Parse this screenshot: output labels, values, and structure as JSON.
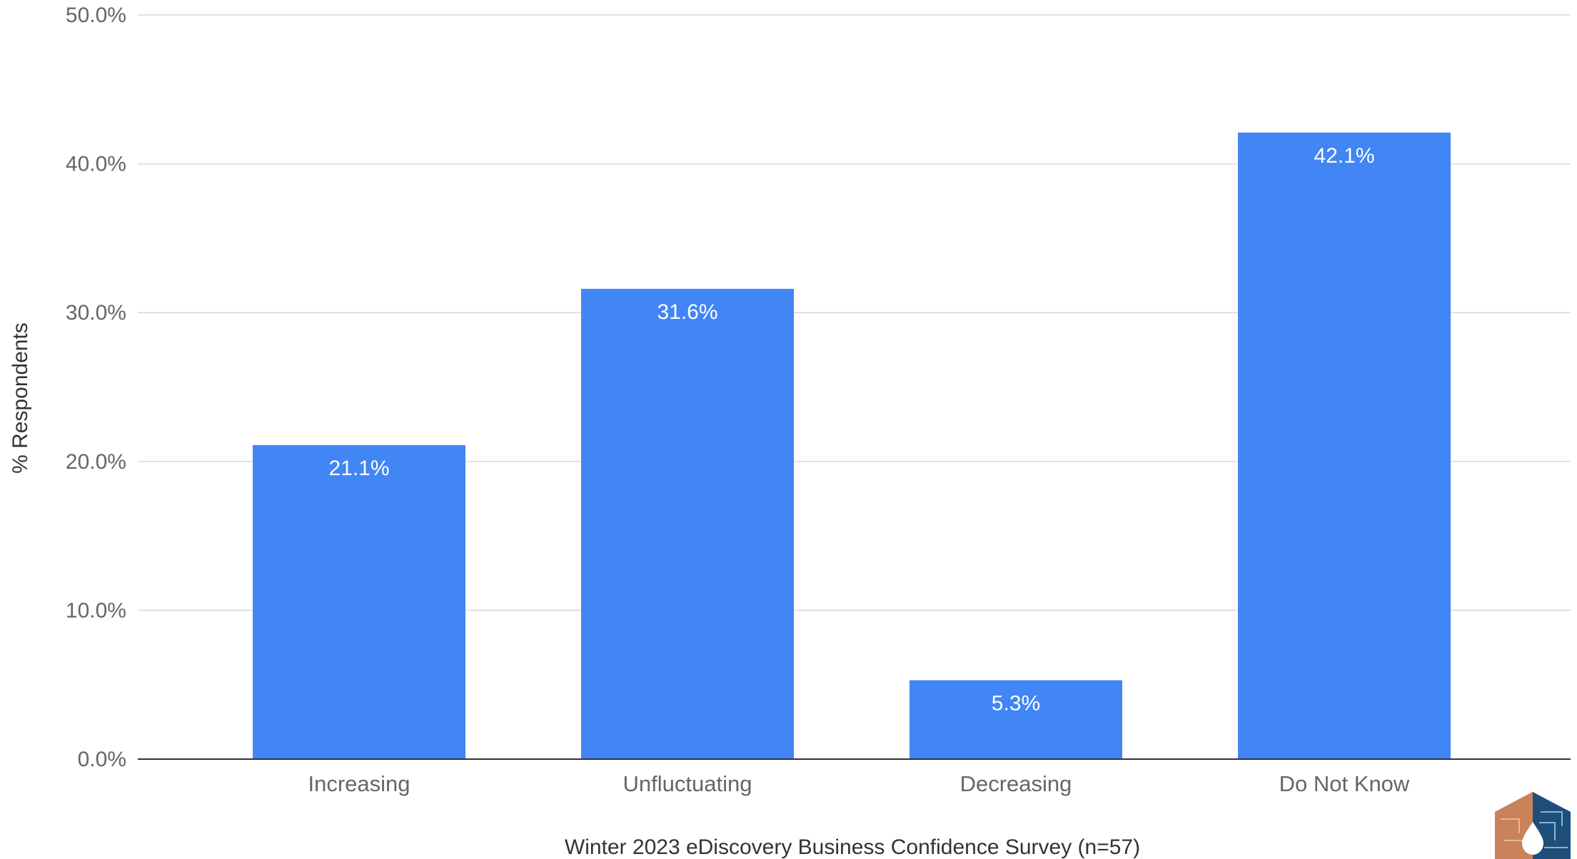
{
  "chart_data": {
    "type": "bar",
    "categories": [
      "Increasing",
      "Unfluctuating",
      "Decreasing",
      "Do Not Know"
    ],
    "values": [
      21.1,
      31.6,
      5.3,
      42.1
    ],
    "value_labels": [
      "21.1%",
      "31.6%",
      "5.3%",
      "42.1%"
    ],
    "title": "",
    "xlabel": "Winter 2023 eDiscovery Business Confidence Survey (n=57)",
    "ylabel": "% Respondents",
    "ylim": [
      0,
      50
    ],
    "yticks": [
      0,
      10,
      20,
      30,
      40,
      50
    ],
    "ytick_labels": [
      "0.0%",
      "10.0%",
      "20.0%",
      "30.0%",
      "40.0%",
      "50.0%"
    ],
    "grid": true,
    "legend": "none",
    "bar_color": "#4285F4",
    "gridline_color": "#D9D9D9",
    "baseline_color": "#333333"
  },
  "logo": {
    "icon": "ediscovery-logo-icon"
  }
}
